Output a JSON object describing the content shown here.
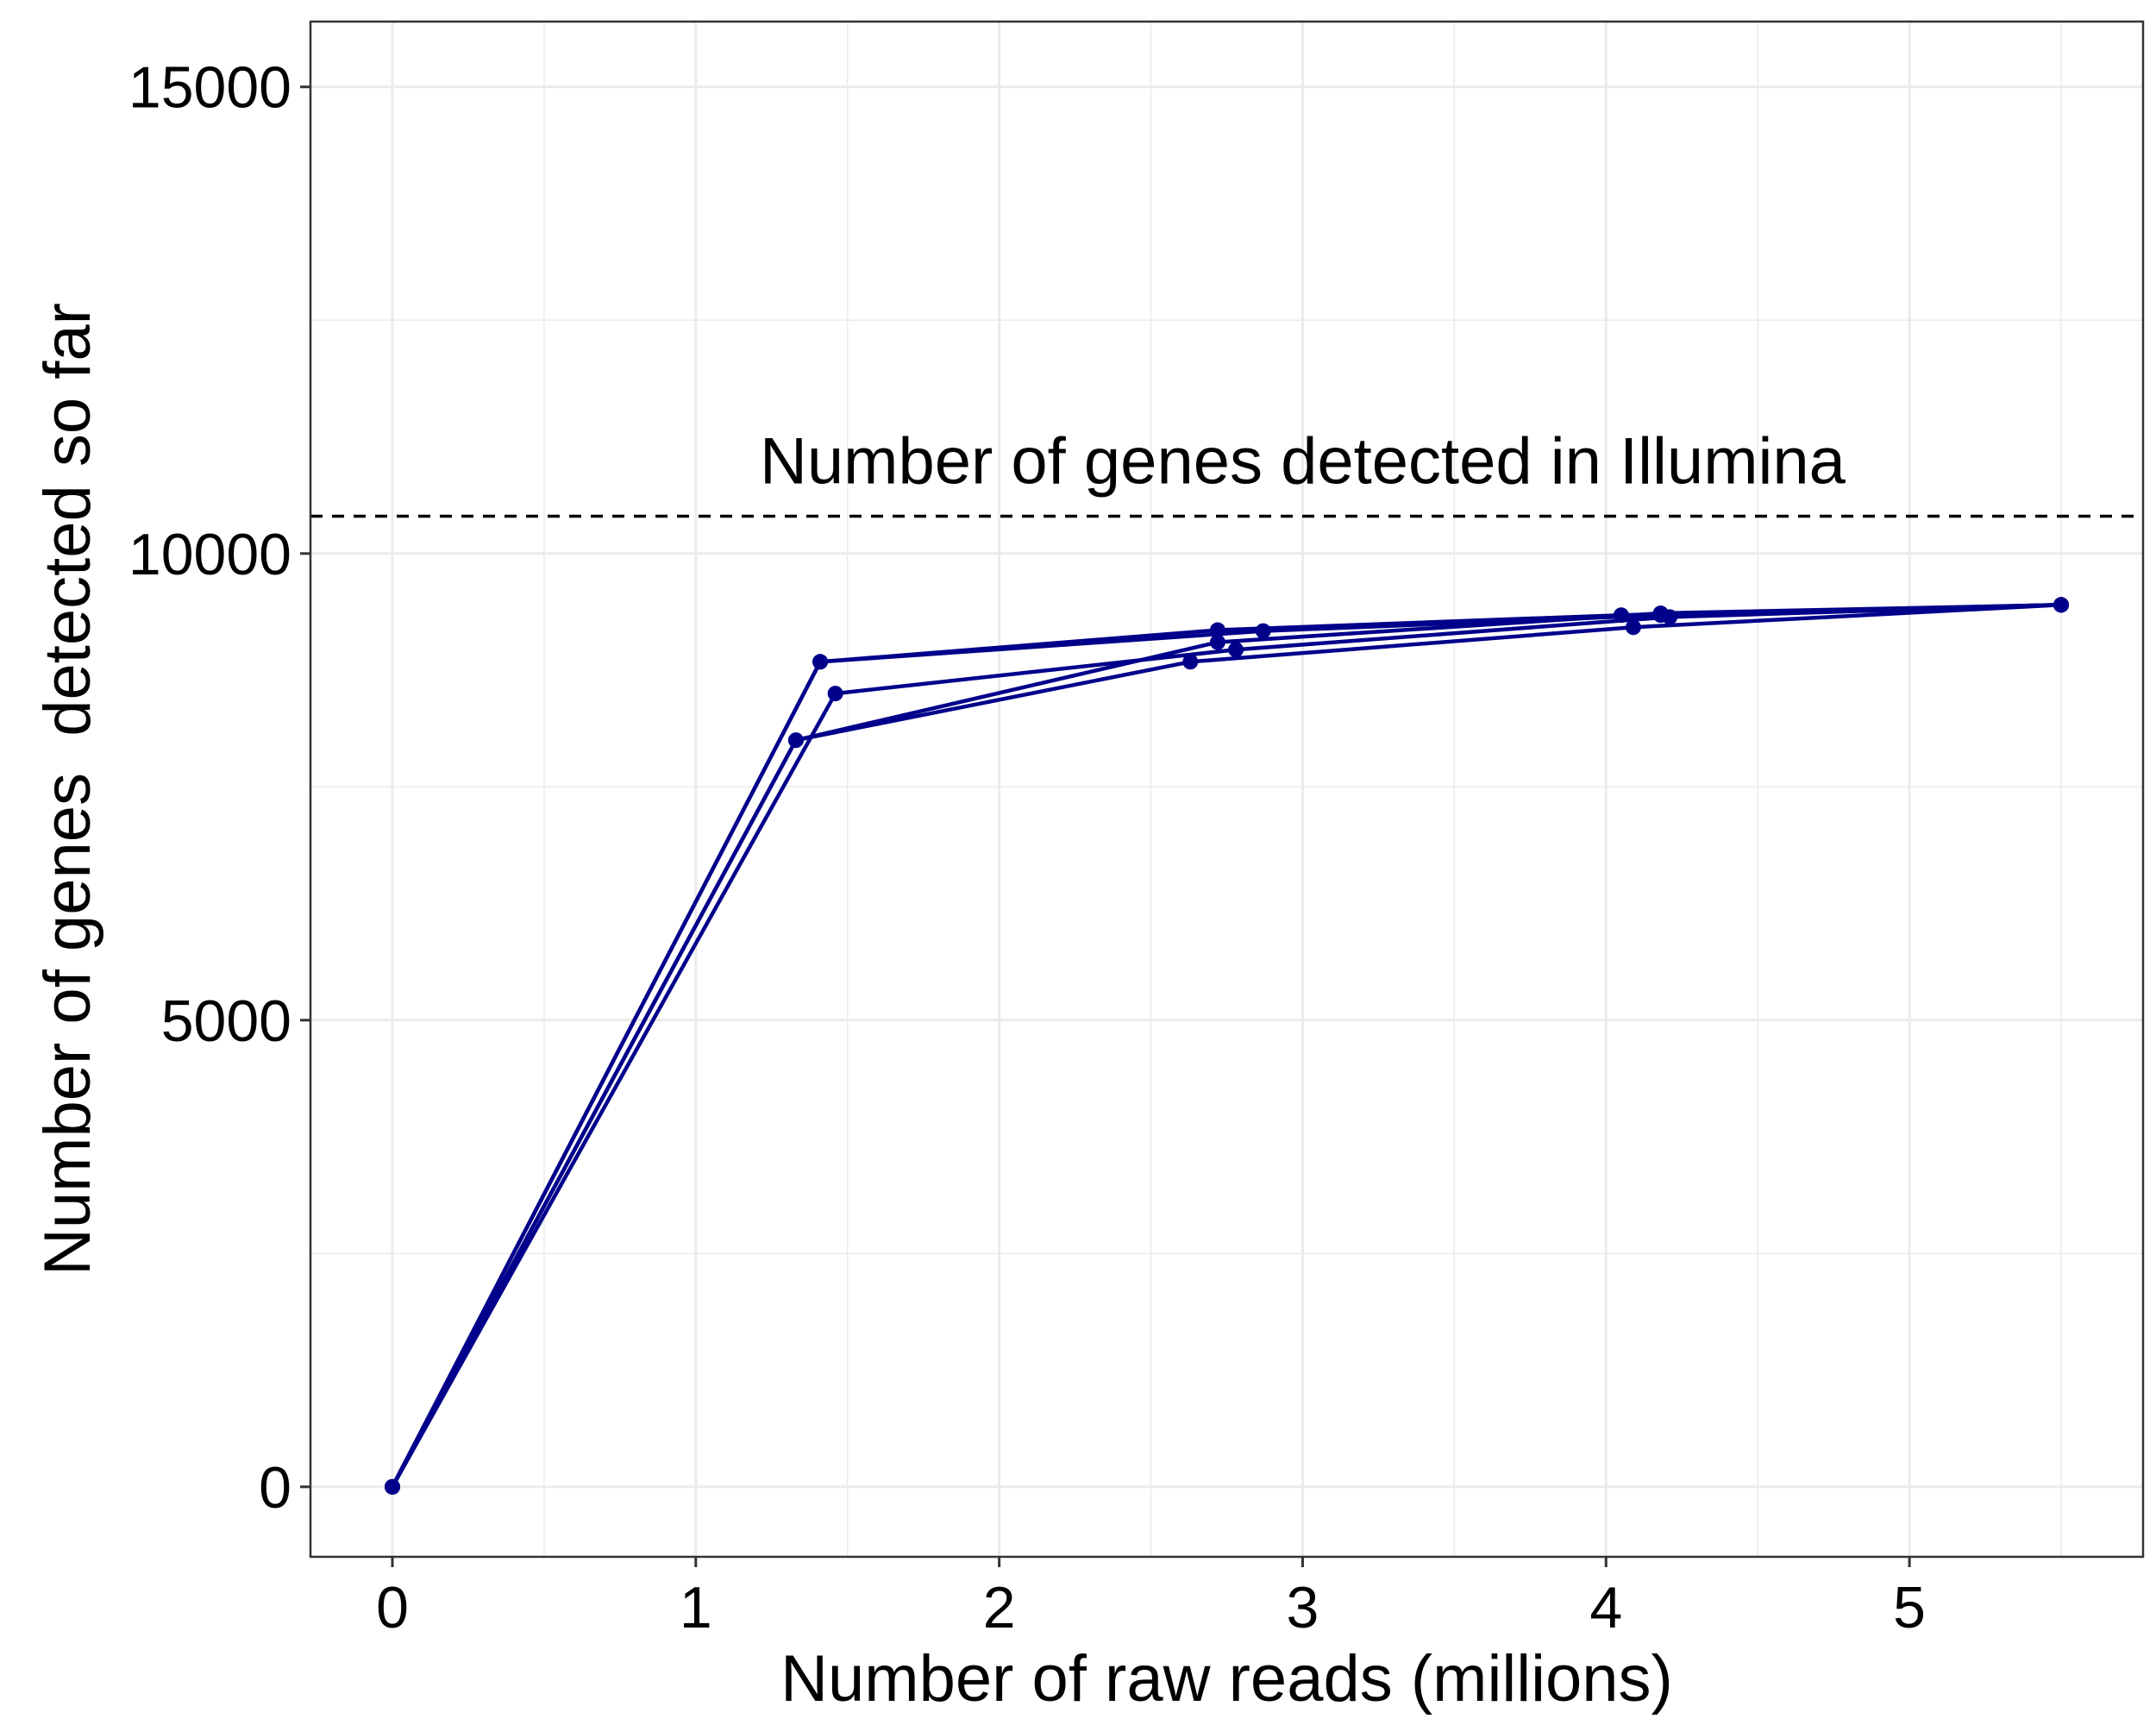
{
  "chart_data": {
    "type": "line",
    "title": "",
    "xlabel": "Number of raw reads (millions)",
    "ylabel": "Number of genes  detected so far",
    "xlim": [
      -0.27,
      5.77
    ],
    "ylim": [
      -750,
      15700
    ],
    "x_ticks": [
      0,
      1,
      2,
      3,
      4,
      5
    ],
    "y_ticks": [
      0,
      5000,
      10000,
      15000
    ],
    "grid": true,
    "color": "#00008B",
    "reference_line": {
      "y": 10400,
      "style": "dashed",
      "label": "Number of genes detected in Illumina"
    },
    "series": [
      {
        "x": [
          0,
          1.41,
          2.72,
          4.05,
          5.5
        ],
        "y": [
          0,
          8840,
          9180,
          9340,
          9450
        ]
      },
      {
        "x": [
          0,
          1.33,
          2.72,
          4.18,
          5.5
        ],
        "y": [
          0,
          8000,
          9050,
          9360,
          9450
        ]
      },
      {
        "x": [
          0,
          1.46,
          2.78,
          4.21,
          5.5
        ],
        "y": [
          0,
          8500,
          8970,
          9320,
          9450
        ]
      },
      {
        "x": [
          0,
          1.33,
          2.63,
          4.09,
          5.5
        ],
        "y": [
          0,
          8000,
          8840,
          9210,
          9450
        ]
      },
      {
        "x": [
          0,
          1.41,
          2.87,
          4.18,
          5.5
        ],
        "y": [
          0,
          8840,
          9170,
          9340,
          9450
        ]
      }
    ]
  }
}
